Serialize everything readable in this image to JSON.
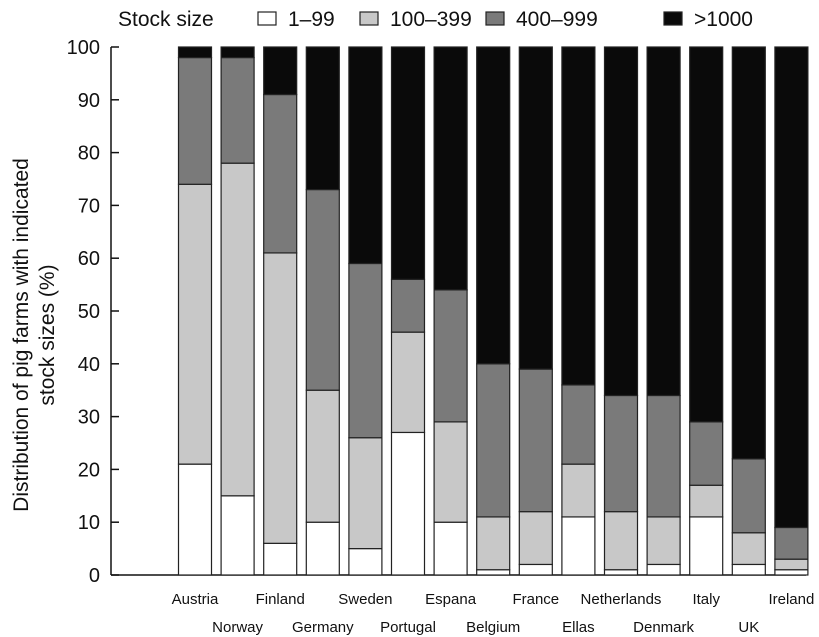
{
  "chart_data": {
    "type": "bar",
    "stacked": true,
    "ylabel_lines": [
      "Distribution of pig farms with indicated",
      "stock sizes (%)"
    ],
    "legend_title": "Stock size",
    "legend_position": "top",
    "ylim": [
      0,
      100
    ],
    "yticks": [
      0,
      10,
      20,
      30,
      40,
      50,
      60,
      70,
      80,
      90,
      100
    ],
    "categories": [
      "Austria",
      "Norway",
      "Finland",
      "Germany",
      "Sweden",
      "Portugal",
      "Espana",
      "Belgium",
      "France",
      "Ellas",
      "Netherlands",
      "Denmark",
      "Italy",
      "UK",
      "Ireland"
    ],
    "series": [
      {
        "name": "1–99",
        "color": "#ffffff",
        "values": [
          21,
          15,
          6,
          10,
          5,
          27,
          10,
          1,
          2,
          11,
          1,
          2,
          11,
          2,
          1
        ]
      },
      {
        "name": "100–399",
        "color": "#c8c8c8",
        "values": [
          53,
          63,
          55,
          25,
          21,
          19,
          19,
          10,
          10,
          10,
          11,
          9,
          6,
          6,
          2
        ]
      },
      {
        "name": "400–999",
        "color": "#7a7a7a",
        "values": [
          24,
          20,
          30,
          38,
          33,
          10,
          25,
          29,
          27,
          15,
          22,
          23,
          12,
          14,
          6
        ]
      },
      {
        "name": ">1000",
        "color": "#0a0a0a",
        "values": [
          2,
          2,
          9,
          27,
          41,
          44,
          46,
          60,
          61,
          64,
          66,
          66,
          71,
          78,
          91
        ]
      }
    ]
  }
}
